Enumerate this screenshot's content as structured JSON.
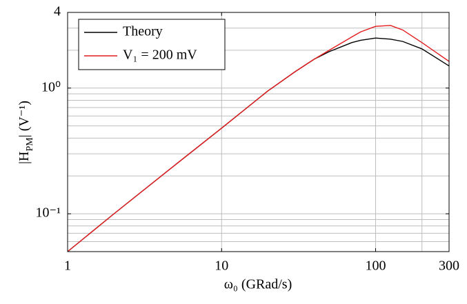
{
  "chart_data": {
    "type": "line",
    "xlabel": "ω₀ (GRad/s)",
    "ylabel": [
      "|H",
      "PM",
      "| (V⁻¹)"
    ],
    "xscale": "log",
    "yscale": "log",
    "xlim": [
      1,
      300
    ],
    "ylim": [
      0.05,
      4
    ],
    "xticks": [
      1,
      10,
      100,
      300
    ],
    "yticks": [
      {
        "value": 0.1,
        "label": "10⁻¹"
      },
      {
        "value": 1,
        "label": "10⁰"
      },
      4
    ],
    "xgrid": [
      10,
      100,
      200
    ],
    "ygrid": [
      0.06,
      0.07,
      0.08,
      0.09,
      0.1,
      0.2,
      0.3,
      0.4,
      0.5,
      0.6,
      0.7,
      0.8,
      0.9,
      1,
      2,
      3
    ],
    "grid": true,
    "legend": "upper left",
    "x": [
      1,
      2,
      5,
      10,
      20,
      30,
      40,
      50,
      70,
      80,
      100,
      125,
      150,
      200,
      300
    ],
    "series": [
      {
        "name": "Theory",
        "color": "#000000",
        "values": [
          0.05,
          0.1,
          0.245,
          0.48,
          0.95,
          1.35,
          1.7,
          1.95,
          2.3,
          2.4,
          2.5,
          2.45,
          2.35,
          2.05,
          1.5
        ]
      },
      {
        "name": "V₁ = 200 mV",
        "color": "#e41a1c",
        "values": [
          0.05,
          0.1,
          0.245,
          0.48,
          0.95,
          1.35,
          1.7,
          2.0,
          2.55,
          2.8,
          3.1,
          3.15,
          2.9,
          2.3,
          1.63
        ]
      }
    ]
  }
}
